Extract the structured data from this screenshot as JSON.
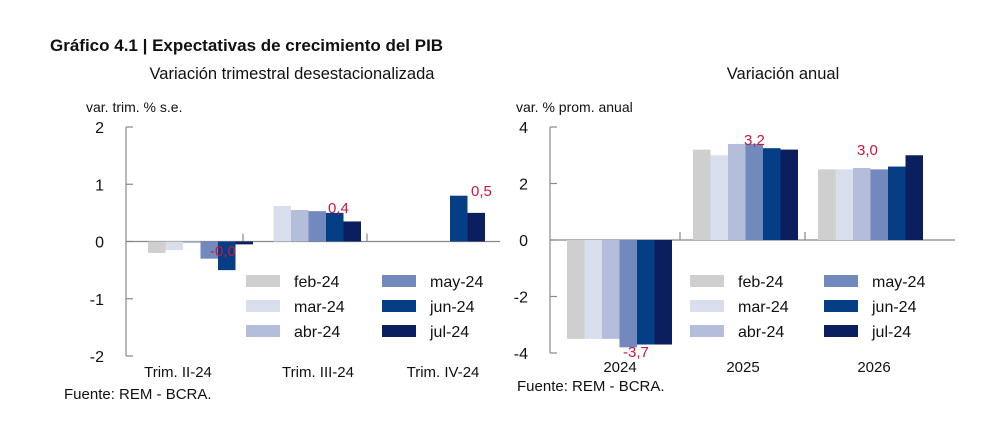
{
  "figure_title": "Gráfico 4.1 | Expectativas de crecimiento del PIB",
  "colors": {
    "feb-24": "#cfcfcf",
    "mar-24": "#d9deec",
    "abr-24": "#b4bedb",
    "may-24": "#7189bd",
    "jun-24": "#063e86",
    "jul-24": "#0b1f5e",
    "label": "#c8183e",
    "axis": "#888888"
  },
  "chart_data": [
    {
      "type": "bar",
      "title": "Variación trimestral desestacionalizada",
      "ylabel": "var. trim. % s.e.",
      "xlabel": "",
      "ylim": [
        -2,
        2
      ],
      "yticks": [
        "2",
        "1",
        "0",
        "-1",
        "-2"
      ],
      "ytick_values": [
        2,
        1,
        0,
        -1,
        -2
      ],
      "categories": [
        "Trim. II-24",
        "Trim. III-24",
        "Trim. IV-24"
      ],
      "series": [
        {
          "name": "feb-24",
          "values": [
            -0.2,
            null,
            null
          ]
        },
        {
          "name": "mar-24",
          "values": [
            -0.15,
            0.62,
            null
          ]
        },
        {
          "name": "abr-24",
          "values": [
            0.0,
            0.55,
            null
          ]
        },
        {
          "name": "may-24",
          "values": [
            -0.3,
            0.53,
            null
          ]
        },
        {
          "name": "jun-24",
          "values": [
            -0.5,
            0.5,
            0.8
          ]
        },
        {
          "name": "jul-24",
          "values": [
            -0.05,
            0.35,
            0.5
          ]
        }
      ],
      "data_labels": [
        "-0,0",
        "0,4",
        "0,5"
      ],
      "legend": [
        "feb-24",
        "mar-24",
        "abr-24",
        "may-24",
        "jun-24",
        "jul-24"
      ],
      "legend_position": "bottom-center",
      "source": "Fuente: REM - BCRA.",
      "grid": false
    },
    {
      "type": "bar",
      "title": "Variación anual",
      "ylabel": "var. % prom. anual",
      "xlabel": "",
      "ylim": [
        -4,
        4
      ],
      "yticks": [
        "4",
        "2",
        "0",
        "-2",
        "-4"
      ],
      "ytick_values": [
        4,
        2,
        0,
        -2,
        -4
      ],
      "categories": [
        "2024",
        "2025",
        "2026"
      ],
      "series": [
        {
          "name": "feb-24",
          "values": [
            -3.5,
            3.2,
            2.5
          ]
        },
        {
          "name": "mar-24",
          "values": [
            -3.5,
            3.0,
            2.5
          ]
        },
        {
          "name": "abr-24",
          "values": [
            -3.5,
            3.4,
            2.55
          ]
        },
        {
          "name": "may-24",
          "values": [
            -3.8,
            3.4,
            2.5
          ]
        },
        {
          "name": "jun-24",
          "values": [
            -3.7,
            3.25,
            2.6
          ]
        },
        {
          "name": "jul-24",
          "values": [
            -3.7,
            3.2,
            3.0
          ]
        }
      ],
      "data_labels": [
        "-3,7",
        "3,2",
        "3,0"
      ],
      "legend": [
        "feb-24",
        "mar-24",
        "abr-24",
        "may-24",
        "jun-24",
        "jul-24"
      ],
      "legend_position": "bottom-right",
      "source": "Fuente: REM - BCRA.",
      "grid": false
    }
  ]
}
